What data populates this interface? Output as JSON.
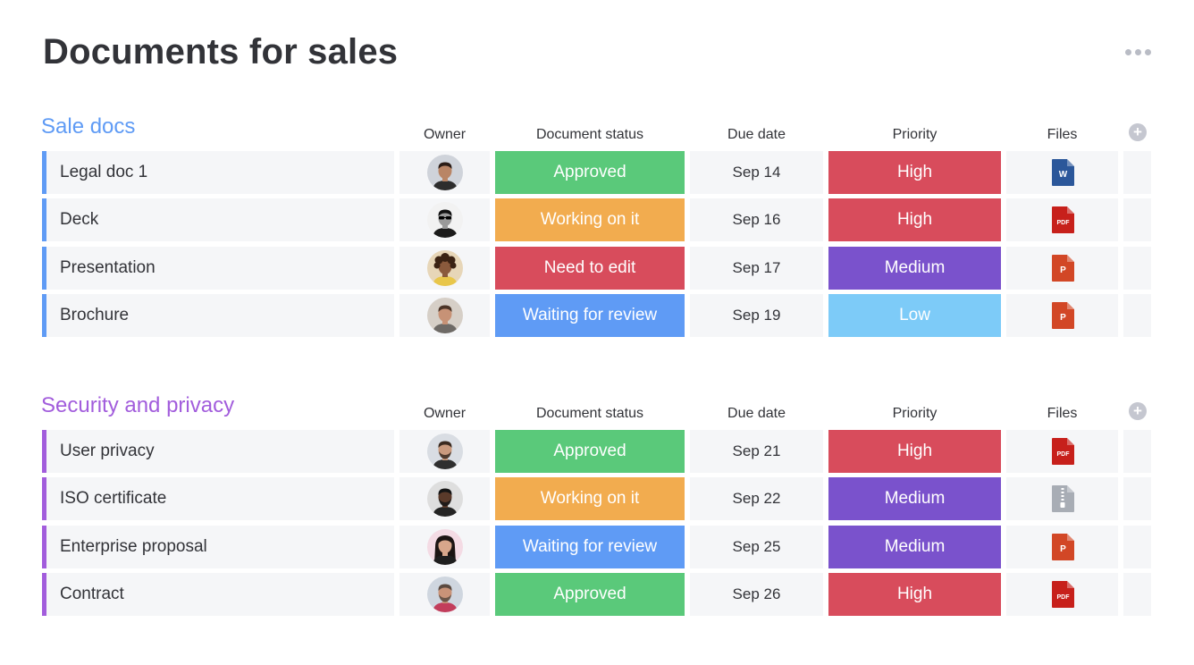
{
  "page": {
    "title": "Documents for sales"
  },
  "columns": {
    "owner": "Owner",
    "status": "Document status",
    "due": "Due date",
    "priority": "Priority",
    "files": "Files"
  },
  "colors": {
    "approved": "#5ac97a",
    "working": "#f2ac4f",
    "need_edit": "#d84c5c",
    "waiting": "#5f9bf5",
    "high": "#d84c5c",
    "medium": "#7a52cc",
    "low": "#7dcbf8",
    "group_blue": "#5f9bf5",
    "group_purple": "#a25ddc"
  },
  "groups": [
    {
      "title": "Sale docs",
      "color": "#5f9bf5",
      "rows": [
        {
          "name": "Legal doc 1",
          "status": "Approved",
          "status_color": "#5ac97a",
          "due": "Sep 14",
          "priority": "High",
          "priority_color": "#d84c5c",
          "file": "word-doc-icon",
          "file_label": "W",
          "avatar": "avatar-woman-dark-hair"
        },
        {
          "name": "Deck",
          "status": "Working on it",
          "status_color": "#f2ac4f",
          "due": "Sep 16",
          "priority": "High",
          "priority_color": "#d84c5c",
          "file": "pdf-icon",
          "file_label": "PDF",
          "avatar": "avatar-man-bw-sunglasses"
        },
        {
          "name": "Presentation",
          "status": "Need to edit",
          "status_color": "#d84c5c",
          "due": "Sep 17",
          "priority": "Medium",
          "priority_color": "#7a52cc",
          "file": "powerpoint-icon",
          "file_label": "P",
          "avatar": "avatar-curly-hair"
        },
        {
          "name": "Brochure",
          "status": "Waiting for review",
          "status_color": "#5f9bf5",
          "due": "Sep 19",
          "priority": "Low",
          "priority_color": "#7dcbf8",
          "file": "powerpoint-icon",
          "file_label": "P",
          "avatar": "avatar-woman-short-hair"
        }
      ]
    },
    {
      "title": "Security and privacy",
      "color": "#a25ddc",
      "rows": [
        {
          "name": "User privacy",
          "status": "Approved",
          "status_color": "#5ac97a",
          "due": "Sep 21",
          "priority": "High",
          "priority_color": "#d84c5c",
          "file": "pdf-icon",
          "file_label": "PDF",
          "avatar": "avatar-man-beard"
        },
        {
          "name": "ISO certificate",
          "status": "Working on it",
          "status_color": "#f2ac4f",
          "due": "Sep 22",
          "priority": "Medium",
          "priority_color": "#7a52cc",
          "file": "zip-icon",
          "file_label": "",
          "avatar": "avatar-man-dark-skin"
        },
        {
          "name": "Enterprise proposal",
          "status": "Waiting for review",
          "status_color": "#5f9bf5",
          "due": "Sep 25",
          "priority": "Medium",
          "priority_color": "#7a52cc",
          "file": "powerpoint-icon",
          "file_label": "P",
          "avatar": "avatar-woman-long-dark-hair"
        },
        {
          "name": "Contract",
          "status": "Approved",
          "status_color": "#5ac97a",
          "due": "Sep 26",
          "priority": "High",
          "priority_color": "#d84c5c",
          "file": "pdf-icon",
          "file_label": "PDF",
          "avatar": "avatar-man-bald"
        }
      ]
    }
  ]
}
